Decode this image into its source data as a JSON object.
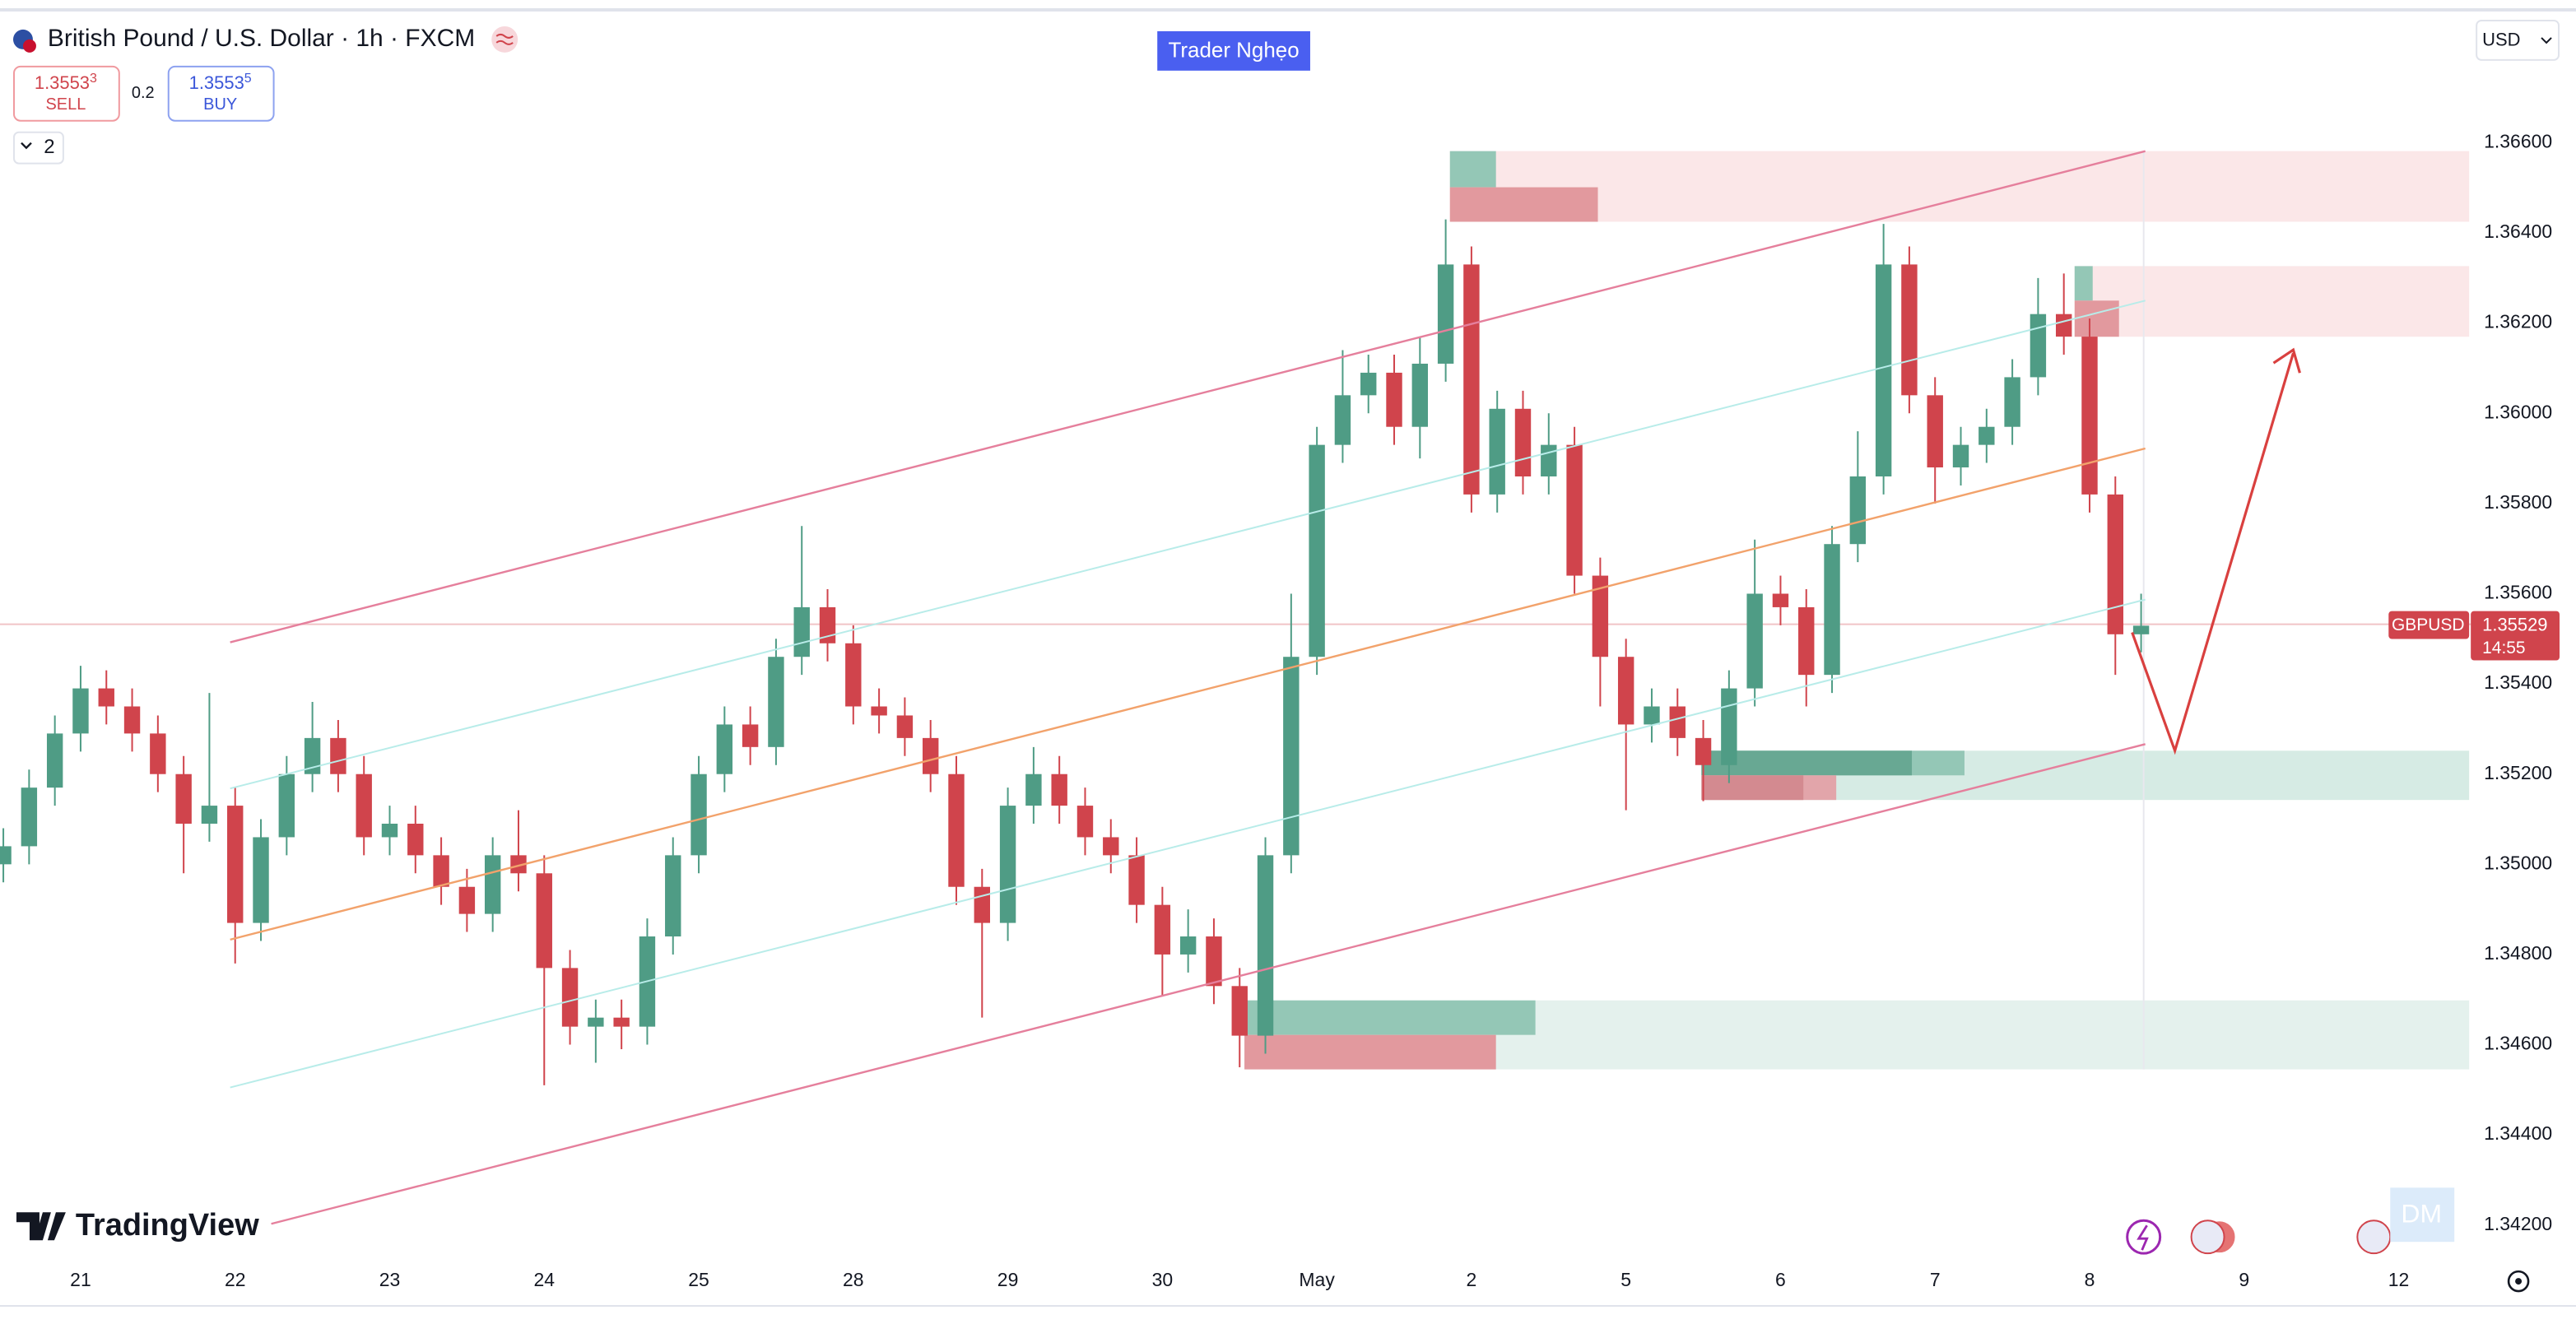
{
  "header": {
    "title": "British Pound / U.S. Dollar · 1h · FXCM",
    "sell_price": "1.3553",
    "sell_price_pip": "3",
    "sell_label": "SELL",
    "spread": "0.2",
    "buy_price": "1.3553",
    "buy_price_pip": "5",
    "buy_label": "BUY",
    "indicators_count": "2",
    "badge": "Trader Nghẹo",
    "currency": "USD",
    "watermark": "TradingView",
    "corner_tag": "DM"
  },
  "chart_data": {
    "type": "candlestick",
    "symbol": "GBPUSD",
    "countdown": "14:55",
    "up_color": "#4f9c85",
    "down_color": "#d0444c",
    "grid": false,
    "open": [
      1.35,
      1.3504,
      1.3517,
      1.3529,
      1.3539,
      1.3535,
      1.3529,
      1.352,
      1.3509,
      1.3513,
      1.3487,
      1.3506,
      1.352,
      1.3528,
      1.352,
      1.3506,
      1.3509,
      1.3502,
      1.3495,
      1.3489,
      1.3502,
      1.3498,
      1.3477,
      1.3464,
      1.3466,
      1.3464,
      1.3484,
      1.3502,
      1.352,
      1.3531,
      1.3526,
      1.3546,
      1.3557,
      1.3549,
      1.3535,
      1.3533,
      1.3528,
      1.352,
      1.3495,
      1.3487,
      1.3513,
      1.352,
      1.3513,
      1.3506,
      1.3502,
      1.3491,
      1.348,
      1.3484,
      1.3473,
      1.3462,
      1.3502,
      1.3546,
      1.3593,
      1.3604,
      1.3609,
      1.3597,
      1.3611,
      1.3633,
      1.3582,
      1.3601,
      1.3586,
      1.3593,
      1.3564,
      1.3546,
      1.3531,
      1.3535,
      1.3528,
      1.3522,
      1.3539,
      1.356,
      1.3557,
      1.3542,
      1.3571,
      1.3586,
      1.3633,
      1.3604,
      1.3588,
      1.3593,
      1.3597,
      1.3608,
      1.3622,
      1.3617,
      1.3582,
      1.3551
    ],
    "high": [
      1.3508,
      1.3521,
      1.3533,
      1.3544,
      1.3543,
      1.3539,
      1.3533,
      1.3524,
      1.3538,
      1.3517,
      1.351,
      1.3524,
      1.3536,
      1.3532,
      1.3524,
      1.3513,
      1.3513,
      1.3506,
      1.3499,
      1.3506,
      1.3512,
      1.3502,
      1.3481,
      1.347,
      1.347,
      1.3488,
      1.3506,
      1.3524,
      1.3535,
      1.3535,
      1.355,
      1.3575,
      1.3561,
      1.3553,
      1.3539,
      1.3537,
      1.3532,
      1.3524,
      1.3499,
      1.3517,
      1.3526,
      1.3524,
      1.3517,
      1.351,
      1.3506,
      1.3495,
      1.349,
      1.3488,
      1.3477,
      1.3506,
      1.356,
      1.3597,
      1.3614,
      1.3613,
      1.3613,
      1.3617,
      1.3643,
      1.3637,
      1.3605,
      1.3605,
      1.36,
      1.3597,
      1.3568,
      1.355,
      1.3539,
      1.3539,
      1.3532,
      1.3543,
      1.3572,
      1.3564,
      1.3561,
      1.3575,
      1.3596,
      1.3642,
      1.3637,
      1.3608,
      1.3597,
      1.3601,
      1.3612,
      1.363,
      1.3631,
      1.3621,
      1.3586,
      1.356
    ],
    "low": [
      1.3496,
      1.35,
      1.3513,
      1.3525,
      1.3531,
      1.3525,
      1.3516,
      1.3498,
      1.3505,
      1.3478,
      1.3483,
      1.3502,
      1.3516,
      1.3516,
      1.3502,
      1.3502,
      1.3498,
      1.3491,
      1.3485,
      1.3485,
      1.3494,
      1.3451,
      1.346,
      1.3456,
      1.3459,
      1.346,
      1.348,
      1.3498,
      1.3516,
      1.3522,
      1.3522,
      1.3542,
      1.3545,
      1.3531,
      1.3529,
      1.3524,
      1.3516,
      1.3491,
      1.3466,
      1.3483,
      1.3509,
      1.3509,
      1.3502,
      1.3498,
      1.3487,
      1.3471,
      1.3476,
      1.3469,
      1.3455,
      1.3458,
      1.3498,
      1.3542,
      1.3589,
      1.36,
      1.3593,
      1.359,
      1.3607,
      1.3578,
      1.3578,
      1.3582,
      1.3582,
      1.356,
      1.3535,
      1.3512,
      1.3527,
      1.3524,
      1.3514,
      1.3518,
      1.3535,
      1.3553,
      1.3535,
      1.3538,
      1.3567,
      1.3582,
      1.36,
      1.358,
      1.3584,
      1.3589,
      1.3593,
      1.3604,
      1.3613,
      1.3578,
      1.3542,
      1.3547
    ],
    "close": [
      1.3504,
      1.3517,
      1.3529,
      1.3539,
      1.3535,
      1.3529,
      1.352,
      1.3509,
      1.3513,
      1.3487,
      1.3506,
      1.352,
      1.3528,
      1.352,
      1.3506,
      1.3509,
      1.3502,
      1.3495,
      1.3489,
      1.3502,
      1.3498,
      1.3477,
      1.3464,
      1.3466,
      1.3464,
      1.3484,
      1.3502,
      1.352,
      1.3531,
      1.3526,
      1.3546,
      1.3557,
      1.3549,
      1.3535,
      1.3533,
      1.3528,
      1.352,
      1.3495,
      1.3487,
      1.3513,
      1.352,
      1.3513,
      1.3506,
      1.3502,
      1.3491,
      1.348,
      1.3484,
      1.3473,
      1.3462,
      1.3502,
      1.3546,
      1.3593,
      1.3604,
      1.3609,
      1.3597,
      1.3611,
      1.3633,
      1.3582,
      1.3601,
      1.3586,
      1.3593,
      1.3564,
      1.3546,
      1.3531,
      1.3535,
      1.3528,
      1.3522,
      1.3539,
      1.356,
      1.3557,
      1.3542,
      1.3571,
      1.3586,
      1.3633,
      1.3604,
      1.3588,
      1.3593,
      1.3597,
      1.3608,
      1.3622,
      1.3617,
      1.3582,
      1.3551,
      1.35529
    ],
    "xlim": [
      -0.13,
      95.8
    ],
    "xticks": [
      {
        "value": 3,
        "label": "21"
      },
      {
        "value": 9,
        "label": "22"
      },
      {
        "value": 15,
        "label": "23"
      },
      {
        "value": 21,
        "label": "24"
      },
      {
        "value": 27,
        "label": "25"
      },
      {
        "value": 33,
        "label": "28"
      },
      {
        "value": 39,
        "label": "29"
      },
      {
        "value": 45,
        "label": "30"
      },
      {
        "value": 51,
        "label": "May"
      },
      {
        "value": 57,
        "label": "2"
      },
      {
        "value": 63,
        "label": "5"
      },
      {
        "value": 69,
        "label": "6"
      },
      {
        "value": 75,
        "label": "7"
      },
      {
        "value": 81,
        "label": "8"
      },
      {
        "value": 87,
        "label": "9"
      },
      {
        "value": 93,
        "label": "12"
      }
    ],
    "ylim": [
      1.3413,
      1.3688
    ],
    "yticks": [
      {
        "value": 1.342,
        "label": "1.34200"
      },
      {
        "value": 1.344,
        "label": "1.34400"
      },
      {
        "value": 1.346,
        "label": "1.34600"
      },
      {
        "value": 1.348,
        "label": "1.34800"
      },
      {
        "value": 1.35,
        "label": "1.35000"
      },
      {
        "value": 1.352,
        "label": "1.35200"
      },
      {
        "value": 1.354,
        "label": "1.35400"
      },
      {
        "value": 1.356,
        "label": "1.35600"
      },
      {
        "value": 1.358,
        "label": "1.35800"
      },
      {
        "value": 1.36,
        "label": "1.36000"
      },
      {
        "value": 1.362,
        "label": "1.36200"
      },
      {
        "value": 1.364,
        "label": "1.36400"
      },
      {
        "value": 1.366,
        "label": "1.36600"
      }
    ]
  }
}
